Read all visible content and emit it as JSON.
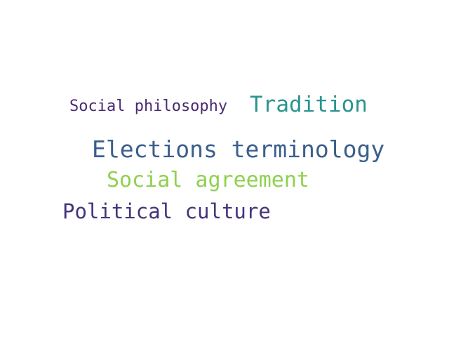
{
  "words": [
    {
      "text": "Social philosophy",
      "color": "#4b2a72"
    },
    {
      "text": "Tradition",
      "color": "#2a9490"
    },
    {
      "text": "Elections terminology",
      "color": "#3a5f8c"
    },
    {
      "text": "Social agreement",
      "color": "#8fd14f"
    },
    {
      "text": "Political culture",
      "color": "#44347a"
    }
  ]
}
